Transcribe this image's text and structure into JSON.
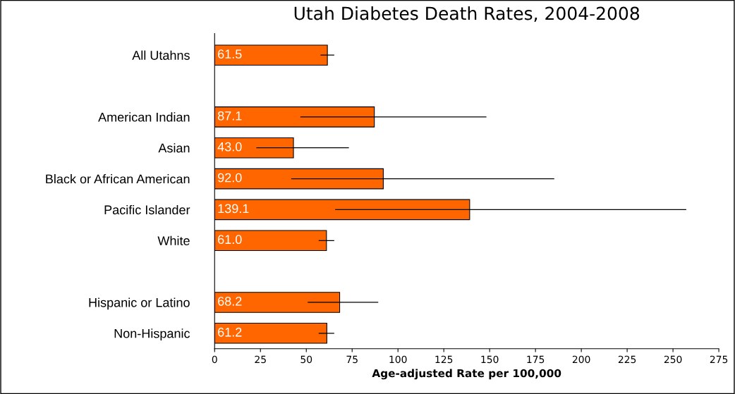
{
  "chart_data": {
    "type": "bar",
    "orientation": "horizontal",
    "title": "Utah Diabetes Death Rates, 2004-2008",
    "xlabel": "Age-adjusted Rate per 100,000",
    "categories": [
      "All Utahns",
      null,
      "American Indian",
      "Asian",
      "Black or African American",
      "Pacific Islander",
      "White",
      null,
      "Hispanic or Latino",
      "Non-Hispanic"
    ],
    "values": [
      61.5,
      null,
      87.1,
      43.0,
      92.0,
      139.1,
      61.0,
      null,
      68.2,
      61.2
    ],
    "value_labels": [
      "61.5",
      null,
      "87.1",
      "43.0",
      "92.0",
      "139.1",
      "61.0",
      null,
      "68.2",
      "61.2"
    ],
    "errors": [
      [
        58,
        65
      ],
      null,
      [
        47,
        148
      ],
      [
        23,
        73
      ],
      [
        42,
        185
      ],
      [
        66,
        257
      ],
      [
        57,
        65
      ],
      null,
      [
        51,
        89
      ],
      [
        57,
        65
      ]
    ],
    "color": "#ff6600",
    "xlim": [
      0,
      275
    ],
    "xticks": [
      0,
      25,
      50,
      75,
      100,
      125,
      150,
      175,
      200,
      225,
      250,
      275
    ],
    "grid": false,
    "legend": false
  }
}
